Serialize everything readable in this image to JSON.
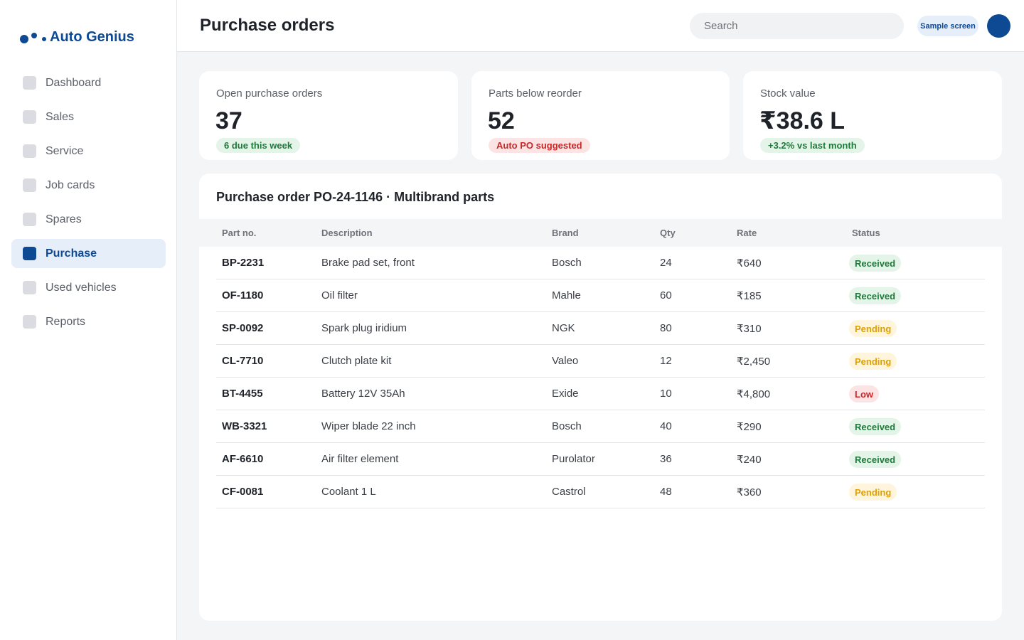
{
  "app": {
    "name": "Auto Genius"
  },
  "sidebar": {
    "items": [
      {
        "label": "Dashboard",
        "active": false
      },
      {
        "label": "Sales",
        "active": false
      },
      {
        "label": "Service",
        "active": false
      },
      {
        "label": "Job cards",
        "active": false
      },
      {
        "label": "Spares",
        "active": false
      },
      {
        "label": "Purchase",
        "active": true
      },
      {
        "label": "Used vehicles",
        "active": false
      },
      {
        "label": "Reports",
        "active": false
      }
    ]
  },
  "header": {
    "title": "Purchase orders",
    "search_placeholder": "Search",
    "badge": "Sample screen"
  },
  "stats": [
    {
      "label": "Open purchase orders",
      "value": "37",
      "pill": "6 due this week",
      "pill_tone": "green"
    },
    {
      "label": "Parts below reorder",
      "value": "52",
      "pill": "Auto PO suggested",
      "pill_tone": "red"
    },
    {
      "label": "Stock value",
      "value": "₹38.6 L",
      "pill": "+3.2% vs last month",
      "pill_tone": "green"
    }
  ],
  "order": {
    "title": "Purchase order PO-24-1146 · Multibrand parts",
    "columns": [
      "Part no.",
      "Description",
      "Brand",
      "Qty",
      "Rate",
      "Status"
    ],
    "rows": [
      {
        "part": "BP-2231",
        "description": "Brake pad set, front",
        "brand": "Bosch",
        "qty": "24",
        "rate": "₹640",
        "status": "Received"
      },
      {
        "part": "OF-1180",
        "description": "Oil filter",
        "brand": "Mahle",
        "qty": "60",
        "rate": "₹185",
        "status": "Received"
      },
      {
        "part": "SP-0092",
        "description": "Spark plug iridium",
        "brand": "NGK",
        "qty": "80",
        "rate": "₹310",
        "status": "Pending"
      },
      {
        "part": "CL-7710",
        "description": "Clutch plate kit",
        "brand": "Valeo",
        "qty": "12",
        "rate": "₹2,450",
        "status": "Pending"
      },
      {
        "part": "BT-4455",
        "description": "Battery 12V 35Ah",
        "brand": "Exide",
        "qty": "10",
        "rate": "₹4,800",
        "status": "Low"
      },
      {
        "part": "WB-3321",
        "description": "Wiper blade 22 inch",
        "brand": "Bosch",
        "qty": "40",
        "rate": "₹290",
        "status": "Received"
      },
      {
        "part": "AF-6610",
        "description": "Air filter element",
        "brand": "Purolator",
        "qty": "36",
        "rate": "₹240",
        "status": "Received"
      },
      {
        "part": "CF-0081",
        "description": "Coolant 1 L",
        "brand": "Castrol",
        "qty": "48",
        "rate": "₹360",
        "status": "Pending"
      }
    ]
  },
  "colors": {
    "brand": "#0d4a93",
    "received": "#1f7a3a",
    "pending": "#e0a000",
    "low": "#c62828"
  }
}
